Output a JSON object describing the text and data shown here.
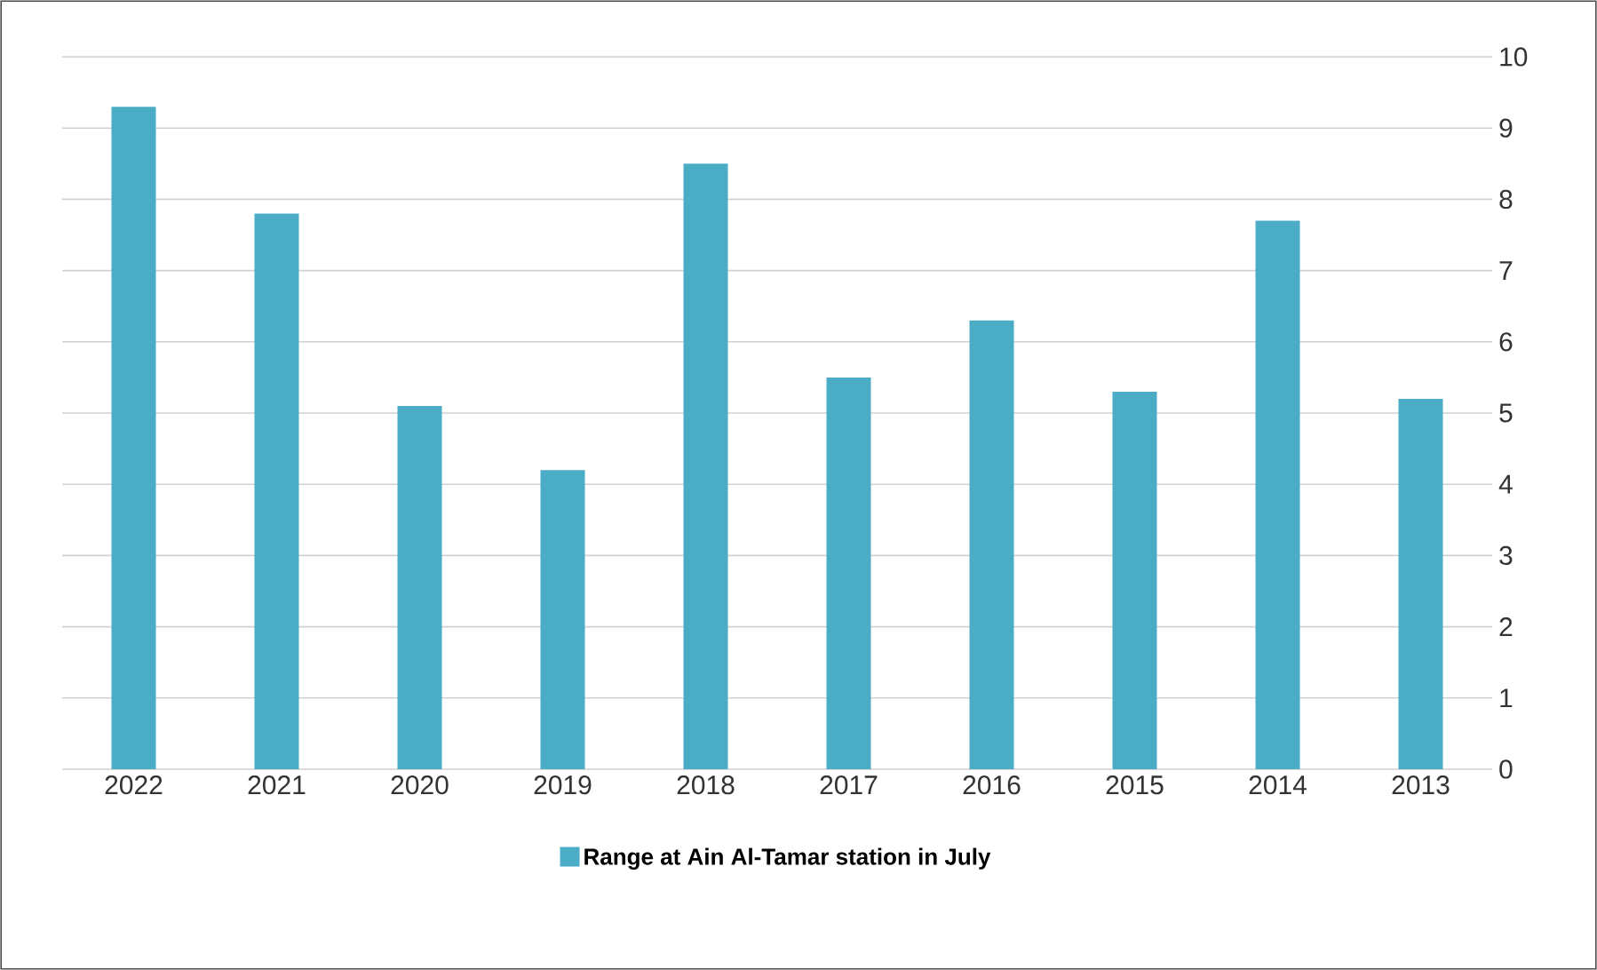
{
  "chart_data": {
    "type": "bar",
    "categories": [
      "2022",
      "2021",
      "2020",
      "2019",
      "2018",
      "2017",
      "2016",
      "2015",
      "2014",
      "2013"
    ],
    "series": [
      {
        "name": "Range at Ain Al-Tamar station in July",
        "color": "#4bacc6",
        "values": [
          9.3,
          7.8,
          5.1,
          4.2,
          8.5,
          5.5,
          6.3,
          5.3,
          7.7,
          5.2
        ]
      }
    ],
    "ylim": [
      0,
      10
    ],
    "yticks": [
      0,
      1,
      2,
      3,
      4,
      5,
      6,
      7,
      8,
      9,
      10
    ],
    "grid": "y",
    "legend": "bottom"
  }
}
